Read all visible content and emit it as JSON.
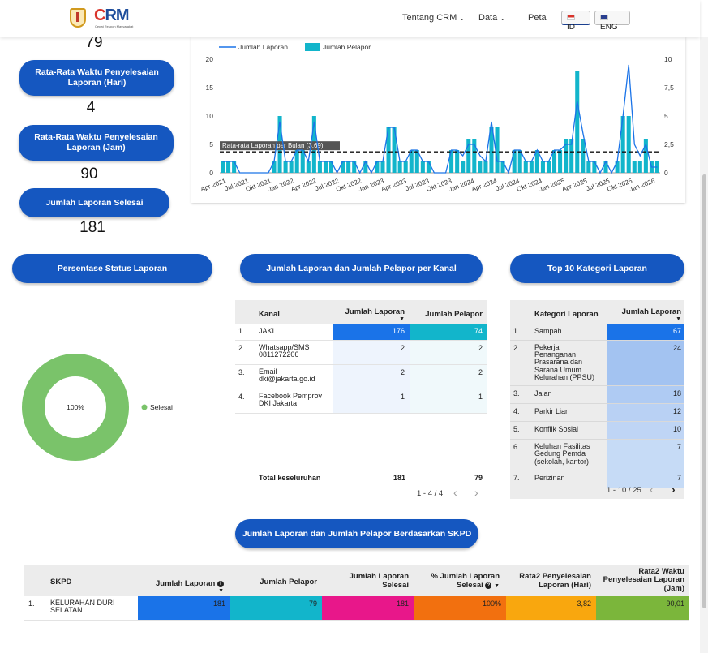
{
  "header": {
    "logo_text_c": "C",
    "logo_text_rm": "RM",
    "logo_sub": "Cepat Respon Masyarakat",
    "nav": [
      "Tentang CRM",
      "Data",
      "Peta"
    ],
    "lang_id": "ID",
    "lang_eng": "ENG"
  },
  "kpi": {
    "top_value": "79",
    "avg_days_label": "Rata-Rata Waktu Penyelesaian Laporan (Hari)",
    "avg_days_value": "4",
    "avg_hours_label": "Rata-Rata Waktu Penyelesaian Laporan (Jam)",
    "avg_hours_value": "90",
    "done_label": "Jumlah Laporan Selesai",
    "done_value": "181"
  },
  "section_titles": {
    "status": "Persentase Status Laporan",
    "kanal": "Jumlah Laporan dan Jumlah Pelapor per Kanal",
    "kategori": "Top 10 Kategori Laporan",
    "skpd": "Jumlah Laporan dan Jumlah Pelapor Berdasarkan SKPD"
  },
  "colors": {
    "primary": "#1557c0",
    "line": "#1a73e8",
    "bar": "#12b5cb",
    "donut": "#7ac36a"
  },
  "chart_data": [
    {
      "type": "bar+line",
      "legend": [
        "Jumlah Laporan",
        "Jumlah Pelapor"
      ],
      "legend_position": "top-left",
      "x_ticks": [
        "Apr 2021",
        "Jul 2021",
        "Okt 2021",
        "Jan 2022",
        "Apr 2022",
        "Jul 2022",
        "Okt 2022",
        "Jan 2023",
        "Apr 2023",
        "Jul 2023",
        "Okt 2023",
        "Jan 2024",
        "Apr 2024",
        "Jul 2024",
        "Okt 2024",
        "Jan 2025",
        "Apr 2025",
        "Jul 2025",
        "Okt 2025",
        "Jan 2026"
      ],
      "y_left_ticks": [
        "0",
        "5",
        "10",
        "15",
        "20"
      ],
      "y_right_ticks": [
        "0",
        "2,5",
        "5",
        "7,5",
        "10"
      ],
      "ylim_left": [
        0,
        20
      ],
      "ylim_right": [
        0,
        10
      ],
      "bar_values": [
        1,
        1,
        1,
        0,
        0,
        0,
        0,
        0,
        0,
        1,
        5,
        1,
        1,
        2,
        2,
        1,
        5,
        1,
        1,
        1,
        0,
        1,
        1,
        1,
        0,
        1,
        0,
        1,
        1,
        4,
        4,
        1,
        1,
        2,
        2,
        1,
        1,
        0,
        0,
        0,
        2,
        2,
        1,
        3,
        3,
        1,
        1,
        4,
        4,
        1,
        0,
        2,
        2,
        1,
        1,
        2,
        1,
        1,
        2,
        2,
        3,
        3,
        9,
        3,
        1,
        1,
        0,
        1,
        0,
        1,
        5,
        5,
        1,
        1,
        3,
        1,
        1
      ],
      "line_values": [
        2,
        2,
        2,
        0,
        0,
        0,
        0,
        0,
        0,
        2,
        9,
        2,
        2,
        4,
        4,
        2,
        9,
        2,
        2,
        2,
        0,
        2,
        2,
        2,
        0,
        2,
        0,
        2,
        2,
        8,
        8,
        2,
        2,
        4,
        4,
        2,
        2,
        0,
        0,
        0,
        4,
        4,
        3,
        5,
        5,
        3,
        2,
        9,
        2,
        2,
        0,
        4,
        4,
        2,
        2,
        4,
        2,
        2,
        4,
        4,
        5,
        5,
        12.6,
        7,
        2,
        2,
        0,
        2,
        0,
        2,
        10,
        19,
        5,
        3,
        5,
        1,
        1
      ],
      "reference_line": {
        "label": "Rata-rata Laporan per Bulan (3,69)",
        "value": 3.69
      }
    },
    {
      "type": "pie",
      "categories": [
        "Selesai"
      ],
      "values": [
        100
      ],
      "center_label": "100%"
    }
  ],
  "kanal_table": {
    "headers": [
      "Kanal",
      "Jumlah Laporan",
      "Jumlah Pelapor"
    ],
    "rows": [
      {
        "no": "1.",
        "name": "JAKI",
        "laporan": "176",
        "pelapor": "74"
      },
      {
        "no": "2.",
        "name": "Whatsapp/SMS 0811272206",
        "laporan": "2",
        "pelapor": "2"
      },
      {
        "no": "3.",
        "name": "Email dki@jakarta.go.id",
        "laporan": "2",
        "pelapor": "2"
      },
      {
        "no": "4.",
        "name": "Facebook Pemprov DKI Jakarta",
        "laporan": "1",
        "pelapor": "1"
      }
    ],
    "total_label": "Total keseluruhan",
    "total_laporan": "181",
    "total_pelapor": "79",
    "pager": "1 - 4 / 4"
  },
  "kategori_table": {
    "headers": [
      "Kategori Laporan",
      "Jumlah Laporan"
    ],
    "rows": [
      {
        "no": "1.",
        "name": "Sampah",
        "value": "67"
      },
      {
        "no": "2.",
        "name": "Pekerja Penanganan Prasarana dan Sarana Umum Kelurahan (PPSU)",
        "value": "24"
      },
      {
        "no": "3.",
        "name": "Jalan",
        "value": "18"
      },
      {
        "no": "4.",
        "name": "Parkir Liar",
        "value": "12"
      },
      {
        "no": "5.",
        "name": "Konflik Sosial",
        "value": "10"
      },
      {
        "no": "6.",
        "name": "Keluhan Fasilitas Gedung Pemda (sekolah, kantor)",
        "value": "7"
      },
      {
        "no": "7.",
        "name": "Perizinan",
        "value": "7"
      }
    ],
    "pager": "1 - 10 / 25"
  },
  "skpd_table": {
    "headers": [
      "SKPD",
      "Jumlah Laporan",
      "Jumlah Pelapor",
      "Jumlah Laporan Selesai",
      "% Jumlah Laporan Selesai",
      "Rata2 Penyelesaian Laporan (Hari)",
      "Rata2 Waktu Penyelesaian Laporan (Jam)"
    ],
    "rows": [
      {
        "no": "1.",
        "name": "KELURAHAN DURI SELATAN",
        "laporan": "181",
        "pelapor": "79",
        "selesai": "181",
        "persen": "100%",
        "hari": "3,82",
        "jam": "90,01"
      }
    ]
  }
}
